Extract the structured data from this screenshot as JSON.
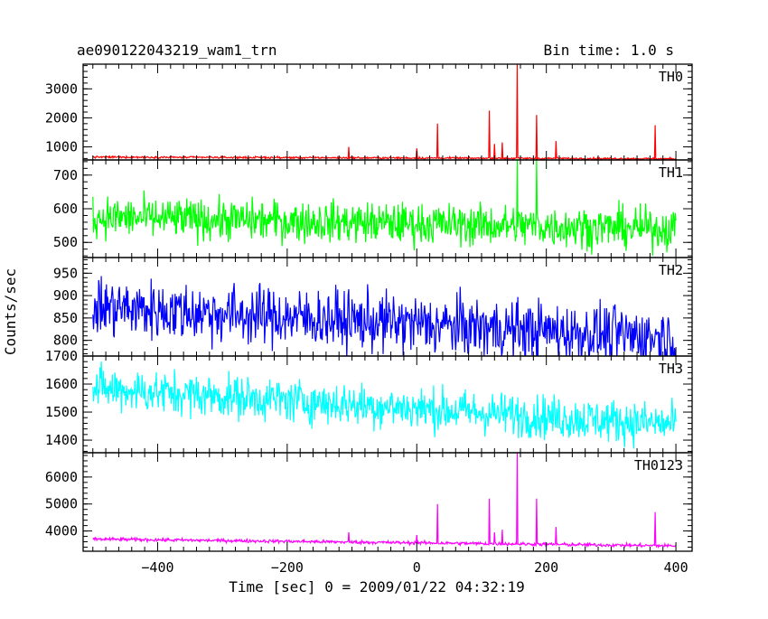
{
  "header": {
    "title": "ae090122043219_wam1_trn",
    "bin_time": "Bin time: 1.0 s"
  },
  "axes": {
    "xlabel": "Time [sec] 0 = 2009/01/22 04:32:19",
    "ylabel": "Counts/sec",
    "x_ticks": [
      -400,
      -200,
      0,
      200,
      400
    ],
    "x_tick_labels": [
      "−400",
      "−200",
      "0",
      "200",
      "400"
    ]
  },
  "chart_data": [
    {
      "type": "line",
      "name": "TH0",
      "color": "#ff0000",
      "xlim": [
        -515,
        425
      ],
      "ylim": [
        550,
        3850
      ],
      "yticks": [
        1000,
        2000,
        3000
      ],
      "x_range": [
        -500,
        400
      ],
      "baseline": 650,
      "noise": 30,
      "slope": -60,
      "spikes": [
        [
          -105,
          1000
        ],
        [
          0,
          950
        ],
        [
          32,
          1800
        ],
        [
          112,
          2250
        ],
        [
          120,
          1100
        ],
        [
          132,
          1150
        ],
        [
          155,
          3850
        ],
        [
          185,
          2100
        ],
        [
          215,
          1200
        ],
        [
          368,
          1750
        ]
      ]
    },
    {
      "type": "line",
      "name": "TH1",
      "color": "#00ff00",
      "xlim": [
        -515,
        425
      ],
      "ylim": [
        455,
        745
      ],
      "yticks": [
        500,
        600,
        700
      ],
      "x_range": [
        -500,
        400
      ],
      "baseline": 575,
      "noise": 55,
      "slope": -35,
      "spikes": [
        [
          155,
          745
        ],
        [
          185,
          745
        ]
      ]
    },
    {
      "type": "line",
      "name": "TH2",
      "color": "#0000ff",
      "xlim": [
        -515,
        425
      ],
      "ylim": [
        765,
        985
      ],
      "yticks": [
        800,
        850,
        900,
        950
      ],
      "x_range": [
        -500,
        400
      ],
      "baseline": 875,
      "noise": 60,
      "slope": -70,
      "spikes": []
    },
    {
      "type": "line",
      "name": "TH3",
      "color": "#00ffff",
      "xlim": [
        -515,
        425
      ],
      "ylim": [
        1355,
        1700
      ],
      "yticks": [
        1400,
        1500,
        1600,
        1700
      ],
      "x_range": [
        -500,
        400
      ],
      "baseline": 1585,
      "noise": 70,
      "slope": -130,
      "spikes": []
    },
    {
      "type": "line",
      "name": "TH0123",
      "color": "#ff00ff",
      "xlim": [
        -515,
        425
      ],
      "ylim": [
        3250,
        6900
      ],
      "yticks": [
        4000,
        5000,
        6000
      ],
      "x_range": [
        -500,
        400
      ],
      "baseline": 3700,
      "noise": 55,
      "slope": -250,
      "spikes": [
        [
          -105,
          3950
        ],
        [
          0,
          3850
        ],
        [
          32,
          5000
        ],
        [
          112,
          5200
        ],
        [
          120,
          3950
        ],
        [
          132,
          4050
        ],
        [
          155,
          6900
        ],
        [
          185,
          5200
        ],
        [
          215,
          4150
        ],
        [
          368,
          4700
        ]
      ]
    }
  ]
}
